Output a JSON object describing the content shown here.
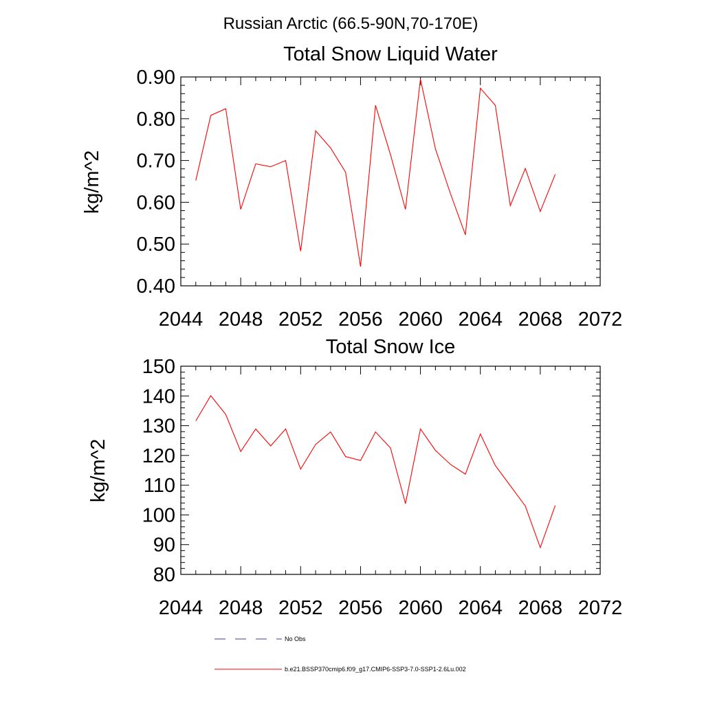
{
  "figure_title": "Russian Arctic (66.5-90N,70-170E)",
  "chart_data": [
    {
      "type": "line",
      "title": "Total Snow Liquid Water",
      "xlabel": "",
      "ylabel": "kg/m^2",
      "xlim": [
        2044,
        2072
      ],
      "ylim": [
        0.4,
        0.9
      ],
      "x_ticks": [
        2044,
        2048,
        2052,
        2056,
        2060,
        2064,
        2068,
        2072
      ],
      "x_tick_labels": [
        "2044",
        "2048",
        "2052",
        "2056",
        "2060",
        "2064",
        "2068",
        "2072"
      ],
      "y_ticks": [
        0.4,
        0.5,
        0.6,
        0.7,
        0.8,
        0.9
      ],
      "y_tick_labels": [
        "0.40",
        "0.50",
        "0.60",
        "0.70",
        "0.80",
        "0.90"
      ],
      "x": [
        2045,
        2046,
        2047,
        2048,
        2049,
        2050,
        2051,
        2052,
        2053,
        2054,
        2055,
        2056,
        2057,
        2058,
        2059,
        2060,
        2061,
        2062,
        2063,
        2064,
        2065,
        2066,
        2067,
        2068,
        2069
      ],
      "series": [
        {
          "name": "b.e21.BSSP370cmip6.f09_g17.CMIP6-SSP3-7.0-SSP1-2.6Lu.002",
          "color": "#ff0000",
          "values": [
            0.652,
            0.808,
            0.824,
            0.583,
            0.692,
            0.685,
            0.7,
            0.483,
            0.771,
            0.73,
            0.672,
            0.446,
            0.832,
            0.714,
            0.583,
            0.895,
            0.728,
            0.621,
            0.522,
            0.873,
            0.832,
            0.592,
            0.681,
            0.578,
            0.667
          ]
        }
      ]
    },
    {
      "type": "line",
      "title": "Total Snow Ice",
      "xlabel": "",
      "ylabel": "kg/m^2",
      "xlim": [
        2044,
        2072
      ],
      "ylim": [
        80,
        150
      ],
      "x_ticks": [
        2044,
        2048,
        2052,
        2056,
        2060,
        2064,
        2068,
        2072
      ],
      "x_tick_labels": [
        "2044",
        "2048",
        "2052",
        "2056",
        "2060",
        "2064",
        "2068",
        "2072"
      ],
      "y_ticks": [
        80,
        90,
        100,
        110,
        120,
        130,
        140,
        150
      ],
      "y_tick_labels": [
        "80",
        "90",
        "100",
        "110",
        "120",
        "130",
        "140",
        "150"
      ],
      "x": [
        2045,
        2046,
        2047,
        2048,
        2049,
        2050,
        2051,
        2052,
        2053,
        2054,
        2055,
        2056,
        2057,
        2058,
        2059,
        2060,
        2061,
        2062,
        2063,
        2064,
        2065,
        2066,
        2067,
        2068,
        2069
      ],
      "series": [
        {
          "name": "b.e21.BSSP370cmip6.f09_g17.CMIP6-SSP3-7.0-SSP1-2.6Lu.002",
          "color": "#ff0000",
          "values": [
            131.6,
            140.1,
            133.8,
            121.3,
            128.9,
            123.2,
            128.9,
            115.4,
            123.7,
            127.9,
            119.6,
            118.3,
            127.9,
            122.5,
            103.8,
            128.9,
            121.7,
            117.0,
            113.7,
            127.2,
            116.6,
            109.8,
            103.0,
            89.0,
            103.2
          ]
        }
      ]
    }
  ],
  "legend": [
    {
      "label": "No Obs",
      "color": "#3b3b8f",
      "style": "dashed"
    },
    {
      "label": "b.e21.BSSP370cmip6.f09_g17.CMIP6-SSP3-7.0-SSP1-2.6Lu.002",
      "color": "#ff0000",
      "style": "solid"
    }
  ]
}
